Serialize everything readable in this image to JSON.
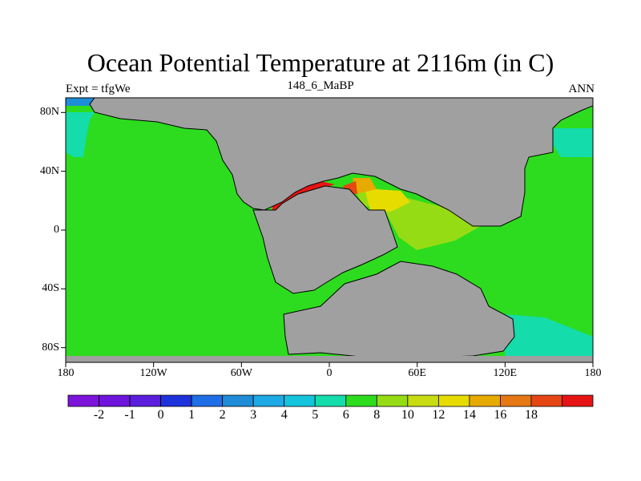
{
  "title": "Ocean Potential Temperature at 2116m (in C)",
  "left_string": "Expt = tfgWe",
  "center_string": "148_6_MaBP",
  "right_string": "ANN",
  "map": {
    "lon_range": [
      -180,
      180
    ],
    "lat_range": [
      -90,
      90
    ],
    "lat_ticks": [
      {
        "value": 80,
        "label": "80N"
      },
      {
        "value": 40,
        "label": "40N"
      },
      {
        "value": 0,
        "label": "0"
      },
      {
        "value": -40,
        "label": "40S"
      },
      {
        "value": -80,
        "label": "80S"
      }
    ],
    "lon_ticks": [
      {
        "value": -180,
        "label": "180"
      },
      {
        "value": -120,
        "label": "120W"
      },
      {
        "value": -60,
        "label": "60W"
      },
      {
        "value": 0,
        "label": "0"
      },
      {
        "value": 60,
        "label": "60E"
      },
      {
        "value": 120,
        "label": "120E"
      },
      {
        "value": 180,
        "label": "180"
      }
    ],
    "land_color": "#a0a0a0",
    "background_field_value": 7
  },
  "colorbar": {
    "colors": [
      "#7d14dc",
      "#6e14dc",
      "#5a1edc",
      "#1e32dc",
      "#1e6ee6",
      "#1e8cd7",
      "#1eaae6",
      "#14c3dc",
      "#14dcaa",
      "#2ddc1e",
      "#96dc14",
      "#c8dc14",
      "#e6dc00",
      "#e6aa00",
      "#e67814",
      "#e64614",
      "#e61414"
    ],
    "labels": [
      "-2",
      "-1",
      "0",
      "1",
      "2",
      "3",
      "4",
      "5",
      "6",
      "8",
      "10",
      "12",
      "14",
      "16",
      "18"
    ]
  }
}
